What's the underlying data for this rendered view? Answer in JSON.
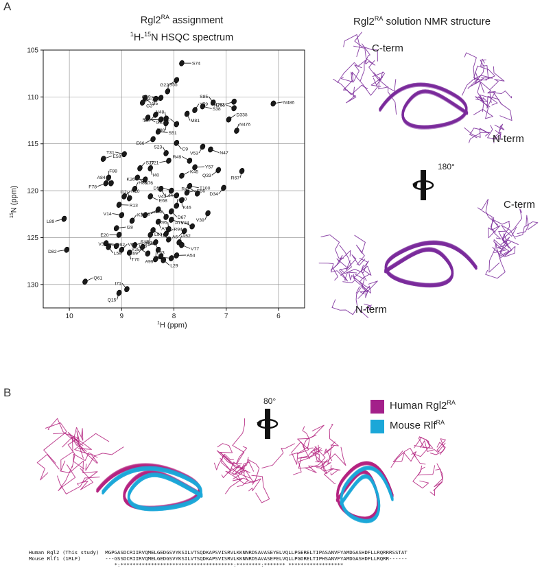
{
  "panel_a": {
    "letter": "A",
    "title_line1_prefix": "Rgl2",
    "title_line1_sup": "RA",
    "title_line1_suffix": " assignment",
    "title_line2_sup1": "1",
    "title_line2_mid": "H-",
    "title_line2_sup2": "15",
    "title_line2_suffix": "N HSQC spectrum",
    "ylabel_sup": "15",
    "ylabel_text": "N (ppm)",
    "xlabel_sup": "1",
    "xlabel_text": "H (ppm)",
    "structure_title_prefix": "Rgl2",
    "structure_title_sup": "RA",
    "structure_title_suffix": " solution NMR structure",
    "label_cterm_top": "C-term",
    "label_nterm_top": "N-term",
    "rotation_top": "180°",
    "label_cterm_bottom": "C-term",
    "label_nterm_bottom": "N-term"
  },
  "chart_data": {
    "type": "scatter",
    "title": "1H-15N HSQC spectrum",
    "xlabel": "1H (ppm)",
    "ylabel": "15N (ppm)",
    "xlim": [
      10.5,
      5.5
    ],
    "ylim": [
      132.5,
      105
    ],
    "x_ticks": [
      10,
      9,
      8,
      7,
      6
    ],
    "y_ticks": [
      105,
      110,
      115,
      120,
      125,
      130
    ],
    "grid": true,
    "peaks": [
      {
        "label": "S74",
        "x": 7.85,
        "y": 106.4
      },
      {
        "label": "G22",
        "x": 7.95,
        "y": 108.2
      },
      {
        "label": "S55",
        "x": 8.12,
        "y": 109.4
      },
      {
        "label": "G5",
        "x": 8.55,
        "y": 110.1
      },
      {
        "label": "G19",
        "x": 8.25,
        "y": 110.1
      },
      {
        "label": "G65",
        "x": 8.6,
        "y": 110.6
      },
      {
        "label": "G3",
        "x": 8.35,
        "y": 110.2
      },
      {
        "label": "S85",
        "x": 7.25,
        "y": 110.6
      },
      {
        "label": "S38",
        "x": 7.45,
        "y": 111.0
      },
      {
        "label": "Q92",
        "x": 6.85,
        "y": 110.5
      },
      {
        "label": "Y79",
        "x": 7.6,
        "y": 111.4
      },
      {
        "label": "M81",
        "x": 7.75,
        "y": 111.8
      },
      {
        "label": "N76δ",
        "x": 6.85,
        "y": 111.2
      },
      {
        "label": "N48δ",
        "x": 6.1,
        "y": 110.7
      },
      {
        "label": "S7",
        "x": 8.35,
        "y": 111.9
      },
      {
        "label": "N48",
        "x": 8.15,
        "y": 112.3
      },
      {
        "label": "G83",
        "x": 8.5,
        "y": 112.2
      },
      {
        "label": "S41",
        "x": 8.25,
        "y": 112.4
      },
      {
        "label": "D33δ",
        "x": 6.95,
        "y": 112.4
      },
      {
        "label": "T98",
        "x": 8.15,
        "y": 112.8
      },
      {
        "label": "S32",
        "x": 7.95,
        "y": 112.9
      },
      {
        "label": "S51",
        "x": 8.3,
        "y": 113.7
      },
      {
        "label": "E66",
        "x": 8.4,
        "y": 114.5
      },
      {
        "label": "N47δ",
        "x": 6.8,
        "y": 113.6
      },
      {
        "label": "C9",
        "x": 7.95,
        "y": 114.9
      },
      {
        "label": "T31",
        "x": 8.95,
        "y": 116.1
      },
      {
        "label": "E58",
        "x": 9.35,
        "y": 116.6
      },
      {
        "label": "V53",
        "x": 7.45,
        "y": 115.3
      },
      {
        "label": "S23",
        "x": 8.15,
        "y": 116.0
      },
      {
        "label": "N47",
        "x": 7.3,
        "y": 115.6
      },
      {
        "label": "D21",
        "x": 8.1,
        "y": 116.8
      },
      {
        "label": "S27",
        "x": 8.65,
        "y": 117.6
      },
      {
        "label": "I40",
        "x": 8.45,
        "y": 117.6
      },
      {
        "label": "R49",
        "x": 7.7,
        "y": 116.8
      },
      {
        "label": "Y57",
        "x": 7.6,
        "y": 117.5
      },
      {
        "label": "Q33",
        "x": 7.15,
        "y": 117.8
      },
      {
        "label": "F88",
        "x": 9.25,
        "y": 118.6
      },
      {
        "label": "N76",
        "x": 8.7,
        "y": 118.6
      },
      {
        "label": "K26",
        "x": 8.55,
        "y": 118.8
      },
      {
        "label": "K45",
        "x": 7.85,
        "y": 118.4
      },
      {
        "label": "R67",
        "x": 6.7,
        "y": 117.9
      },
      {
        "label": "A84",
        "x": 9.2,
        "y": 119.2
      },
      {
        "label": "T100",
        "x": 7.7,
        "y": 119.5
      },
      {
        "label": "F78",
        "x": 9.3,
        "y": 119.2
      },
      {
        "label": "H86",
        "x": 8.75,
        "y": 119.8
      },
      {
        "label": "L44",
        "x": 8.25,
        "y": 119.8
      },
      {
        "label": "D50",
        "x": 8.05,
        "y": 120.0
      },
      {
        "label": "E56",
        "x": 7.75,
        "y": 120.2
      },
      {
        "label": "D34",
        "x": 7.05,
        "y": 119.7
      },
      {
        "label": "I12",
        "x": 8.85,
        "y": 120.8
      },
      {
        "label": "E68",
        "x": 8.45,
        "y": 120.6
      },
      {
        "label": "V43",
        "x": 7.95,
        "y": 120.5
      },
      {
        "label": "R10",
        "x": 8.95,
        "y": 120.6
      },
      {
        "label": "K46",
        "x": 7.85,
        "y": 121.0
      },
      {
        "label": "R42",
        "x": 7.55,
        "y": 120.3
      },
      {
        "label": "R13",
        "x": 9.05,
        "y": 121.5
      },
      {
        "label": "M16",
        "x": 8.3,
        "y": 122.0
      },
      {
        "label": "A80",
        "x": 7.95,
        "y": 121.6
      },
      {
        "label": "D67",
        "x": 8.05,
        "y": 122.2
      },
      {
        "label": "V14",
        "x": 9.0,
        "y": 122.6
      },
      {
        "label": "A73",
        "x": 8.55,
        "y": 122.6
      },
      {
        "label": "V39",
        "x": 7.35,
        "y": 122.4
      },
      {
        "label": "D8",
        "x": 8.15,
        "y": 122.8
      },
      {
        "label": "V24",
        "x": 8.05,
        "y": 123.1
      },
      {
        "label": "L89",
        "x": 10.1,
        "y": 123.0
      },
      {
        "label": "K35",
        "x": 8.8,
        "y": 123.2
      },
      {
        "label": "A36",
        "x": 8.3,
        "y": 123.3
      },
      {
        "label": "A75",
        "x": 7.65,
        "y": 123.8
      },
      {
        "label": "I28",
        "x": 9.1,
        "y": 124.0
      },
      {
        "label": "A6",
        "x": 7.8,
        "y": 124.3
      },
      {
        "label": "R95",
        "x": 8.1,
        "y": 124.1
      },
      {
        "label": "I11",
        "x": 8.4,
        "y": 124.2
      },
      {
        "label": "E20",
        "x": 9.05,
        "y": 124.7
      },
      {
        "label": "R94",
        "x": 8.15,
        "y": 124.6
      },
      {
        "label": "E17",
        "x": 8.45,
        "y": 124.7
      },
      {
        "label": "L90",
        "x": 8.1,
        "y": 125.2
      },
      {
        "label": "Q92",
        "x": 9.3,
        "y": 125.6
      },
      {
        "label": "L18",
        "x": 8.35,
        "y": 125.5
      },
      {
        "label": "A52",
        "x": 7.9,
        "y": 125.5
      },
      {
        "label": "L59",
        "x": 9.25,
        "y": 126.0
      },
      {
        "label": "V30",
        "x": 9.1,
        "y": 125.9
      },
      {
        "label": "R91",
        "x": 8.75,
        "y": 125.8
      },
      {
        "label": "L69",
        "x": 8.6,
        "y": 126.0
      },
      {
        "label": "R93",
        "x": 8.3,
        "y": 126.3
      },
      {
        "label": "V77",
        "x": 7.85,
        "y": 125.8
      },
      {
        "label": "D82",
        "x": 10.05,
        "y": 126.3
      },
      {
        "label": "V60",
        "x": 9.0,
        "y": 126.3
      },
      {
        "label": "T70",
        "x": 8.85,
        "y": 126.6
      },
      {
        "label": "Y25",
        "x": 8.5,
        "y": 126.7
      },
      {
        "label": "A54",
        "x": 7.95,
        "y": 126.9
      },
      {
        "label": "A99",
        "x": 8.25,
        "y": 127.0
      },
      {
        "label": "L63",
        "x": 8.35,
        "y": 127.3
      },
      {
        "label": "L29",
        "x": 8.2,
        "y": 127.4
      },
      {
        "label": "L62",
        "x": 8.05,
        "y": 127.2
      },
      {
        "label": "Q61",
        "x": 9.7,
        "y": 129.7
      },
      {
        "label": "Q15",
        "x": 9.05,
        "y": 130.9
      },
      {
        "label": "I71",
        "x": 8.9,
        "y": 130.5
      }
    ]
  },
  "panel_b": {
    "letter": "B",
    "rotation": "80°",
    "legend_human_prefix": "Human Rgl2",
    "legend_human_sup": "RA",
    "legend_mouse_prefix": "Mouse Rlf",
    "legend_mouse_sup": "RA",
    "color_human": "#a3208a",
    "color_mouse": "#1ba7d8",
    "align_row1": "Human Rgl2 (This study)  MGPGASDCRIIRVQMELGEDGSVYKSILVTSQDKAPSVISRVLKKNNRDSAVASEYELVQLLPGERELTIPASANVFYAMDGASHDFLLRQRRRSSTAT",
    "align_row2": "Mouse Rlf1 (1RLF)        ---GSSDCRIIRVQMELGEDGSVYKSILVTSQDKAPSVISRVLKKNNRDSAVASEFELVQLLPGDRELTIPHSANVFYAMDGASHDFLLRQRR------",
    "align_row3": "                            *:*************************************:********:******* ******************"
  }
}
